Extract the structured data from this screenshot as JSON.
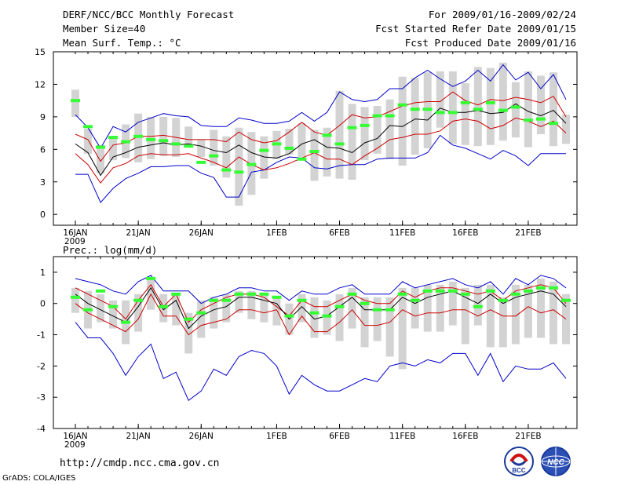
{
  "header": {
    "title": "DERF/NCC/BCC Monthly Forecast",
    "member_size": "Member Size=40",
    "variable1": "Mean Surf. Temp.: °C",
    "forecast_period": "For 2009/01/16-2009/02/24",
    "started_date": "Fcst Started Refer Date 2009/01/15",
    "produced_date": "Fcst Produced Date 2009/01/16"
  },
  "footer": {
    "url": "http://cmdp.ncc.cma.gov.cn",
    "grads": "GrADS: COLA/IGES",
    "logo1_text": "BCC",
    "logo2_text": "NCC"
  },
  "colors": {
    "box": "#d3d3d3",
    "mean": "#000000",
    "spread": "#cc0000",
    "envelope": "#0000cc",
    "obs": "#33ff33"
  },
  "chart_data": [
    {
      "type": "line",
      "title": "Mean Surf. Temp.: °C",
      "xlabel": "",
      "ylabel": "",
      "ylim": [
        -1,
        15
      ],
      "yticks": [
        0,
        3,
        6,
        9,
        12,
        15
      ],
      "xticks": [
        {
          "day": 0,
          "label": "16JAN",
          "sub": "2009"
        },
        {
          "day": 5,
          "label": "21JAN",
          "sub": ""
        },
        {
          "day": 10,
          "label": "26JAN",
          "sub": ""
        },
        {
          "day": 16,
          "label": "1FEB",
          "sub": ""
        },
        {
          "day": 21,
          "label": "6FEB",
          "sub": ""
        },
        {
          "day": 26,
          "label": "11FEB",
          "sub": ""
        },
        {
          "day": 31,
          "label": "16FEB",
          "sub": ""
        },
        {
          "day": 36,
          "label": "21FEB",
          "sub": ""
        }
      ],
      "days": [
        0,
        1,
        2,
        3,
        4,
        5,
        6,
        7,
        8,
        9,
        10,
        11,
        12,
        13,
        14,
        15,
        16,
        17,
        18,
        19,
        20,
        21,
        22,
        23,
        24,
        25,
        26,
        27,
        28,
        29,
        30,
        31,
        32,
        33,
        34,
        35,
        36,
        37,
        38,
        39
      ],
      "series": [
        {
          "name": "max",
          "values": [
            9.2,
            8.0,
            6.1,
            8.1,
            7.6,
            8.5,
            8.9,
            9.3,
            9.1,
            9.0,
            8.2,
            8.1,
            8.1,
            8.9,
            8.7,
            8.4,
            8.4,
            8.6,
            9.4,
            8.6,
            9.4,
            11.3,
            10.6,
            10.4,
            10.6,
            11.6,
            11.6,
            12.6,
            13.3,
            12.5,
            11.8,
            12.3,
            13.3,
            12.3,
            13.8,
            12.4,
            13.1,
            11.6,
            12.9,
            10.6
          ]
        },
        {
          "name": "upper_spread",
          "values": [
            7.4,
            6.9,
            4.9,
            6.4,
            6.6,
            7.2,
            7.2,
            7.3,
            7.1,
            6.9,
            6.9,
            6.9,
            6.7,
            7.6,
            6.9,
            6.6,
            6.8,
            7.6,
            8.5,
            7.6,
            7.3,
            8.2,
            9.2,
            8.9,
            9.0,
            9.5,
            10.0,
            10.3,
            10.4,
            10.4,
            11.3,
            10.5,
            10.1,
            10.6,
            10.5,
            10.8,
            10.6,
            10.3,
            10.9,
            9.0
          ]
        },
        {
          "name": "mean",
          "values": [
            6.5,
            5.7,
            3.6,
            5.3,
            5.7,
            6.2,
            6.4,
            6.6,
            6.4,
            6.5,
            6.3,
            5.9,
            5.7,
            6.4,
            5.7,
            5.3,
            5.2,
            5.6,
            6.5,
            6.9,
            6.2,
            6.1,
            5.7,
            6.6,
            7.0,
            8.2,
            8.1,
            8.8,
            8.7,
            9.8,
            9.4,
            9.4,
            9.6,
            9.3,
            9.4,
            10.2,
            9.5,
            9.1,
            9.6,
            8.4
          ]
        },
        {
          "name": "lower_spread",
          "values": [
            5.6,
            4.6,
            2.9,
            4.3,
            4.7,
            5.4,
            5.6,
            5.5,
            5.5,
            5.6,
            5.2,
            4.8,
            4.3,
            5.3,
            4.6,
            4.1,
            4.3,
            4.7,
            5.2,
            5.7,
            5.1,
            5.1,
            4.6,
            5.4,
            6.1,
            6.9,
            7.1,
            7.4,
            7.4,
            7.7,
            8.6,
            8.8,
            8.6,
            7.9,
            8.2,
            8.9,
            8.6,
            8.1,
            8.6,
            7.5
          ]
        },
        {
          "name": "min",
          "values": [
            3.7,
            3.7,
            1.1,
            2.4,
            3.3,
            3.8,
            4.4,
            4.4,
            4.5,
            4.5,
            3.8,
            3.4,
            1.6,
            1.6,
            3.9,
            4.1,
            4.8,
            5.3,
            5.2,
            4.3,
            4.2,
            4.5,
            4.6,
            4.6,
            5.1,
            5.2,
            5.2,
            5.2,
            5.7,
            7.3,
            6.4,
            6.1,
            5.6,
            5.1,
            5.9,
            5.4,
            4.5,
            5.6,
            5.6,
            5.6
          ]
        },
        {
          "name": "box_top",
          "values": [
            11.5,
            7.9,
            6.4,
            7.2,
            8.3,
            9.3,
            9.0,
            9.0,
            8.9,
            8.1,
            6.9,
            7.8,
            7.2,
            8.0,
            7.6,
            7.2,
            7.7,
            7.9,
            8.4,
            7.8,
            8.0,
            11.4,
            10.2,
            9.9,
            10.0,
            10.6,
            12.7,
            12.6,
            13.1,
            13.2,
            13.2,
            12.1,
            13.6,
            13.5,
            14.0,
            12.2,
            13.2,
            12.8,
            13.1,
            9.2
          ]
        },
        {
          "name": "box_bottom",
          "values": [
            9.0,
            5.6,
            3.8,
            5.0,
            5.2,
            4.8,
            5.1,
            5.4,
            5.3,
            6.2,
            5.3,
            4.5,
            3.4,
            0.8,
            1.8,
            3.3,
            5.1,
            5.5,
            5.3,
            3.1,
            3.5,
            3.3,
            3.2,
            5.0,
            5.6,
            5.1,
            4.5,
            5.5,
            6.1,
            8.0,
            6.5,
            6.4,
            6.3,
            6.4,
            6.8,
            7.1,
            6.2,
            7.4,
            6.3,
            6.5
          ]
        },
        {
          "name": "observed",
          "values": [
            10.5,
            8.1,
            6.2,
            7.1,
            6.7,
            7.2,
            6.9,
            6.8,
            6.5,
            6.3,
            4.8,
            5.4,
            4.1,
            3.9,
            4.6,
            5.9,
            6.5,
            6.1,
            5.1,
            5.8,
            7.3,
            6.5,
            8.0,
            8.2,
            9.1,
            9.1,
            10.1,
            9.7,
            9.7,
            9.4,
            9.4,
            10.3,
            9.7,
            10.3,
            9.6,
            9.9,
            8.7,
            8.8,
            8.4,
            null
          ]
        }
      ]
    },
    {
      "type": "line",
      "title": "Prec.: log(mm/d)",
      "xlabel": "",
      "ylabel": "",
      "ylim": [
        -4,
        1.5
      ],
      "yticks": [
        -4,
        -3,
        -2,
        -1,
        0,
        1
      ],
      "xticks": [
        {
          "day": 0,
          "label": "16JAN",
          "sub": "2009"
        },
        {
          "day": 5,
          "label": "21JAN",
          "sub": ""
        },
        {
          "day": 10,
          "label": "26JAN",
          "sub": ""
        },
        {
          "day": 16,
          "label": "1FEB",
          "sub": ""
        },
        {
          "day": 21,
          "label": "6FEB",
          "sub": ""
        },
        {
          "day": 26,
          "label": "11FEB",
          "sub": ""
        },
        {
          "day": 31,
          "label": "16FEB",
          "sub": ""
        },
        {
          "day": 36,
          "label": "21FEB",
          "sub": ""
        }
      ],
      "days": [
        0,
        1,
        2,
        3,
        4,
        5,
        6,
        7,
        8,
        9,
        10,
        11,
        12,
        13,
        14,
        15,
        16,
        17,
        18,
        19,
        20,
        21,
        22,
        23,
        24,
        25,
        26,
        27,
        28,
        29,
        30,
        31,
        32,
        33,
        34,
        35,
        36,
        37,
        38,
        39
      ],
      "series": [
        {
          "name": "max",
          "values": [
            0.8,
            0.7,
            0.6,
            0.4,
            0.3,
            0.7,
            0.9,
            0.4,
            0.4,
            0.4,
            0.0,
            0.2,
            0.3,
            0.5,
            0.5,
            0.4,
            0.4,
            0.1,
            0.4,
            0.3,
            0.3,
            0.5,
            0.6,
            0.3,
            0.3,
            0.3,
            0.7,
            0.5,
            0.6,
            0.7,
            0.8,
            0.6,
            0.5,
            0.7,
            0.3,
            0.8,
            0.6,
            0.9,
            0.8,
            0.5
          ]
        },
        {
          "name": "upper_spread",
          "values": [
            0.5,
            0.3,
            0.1,
            -0.1,
            -0.5,
            0.1,
            0.6,
            -0.1,
            0.3,
            -0.6,
            -0.2,
            0.0,
            0.2,
            0.3,
            0.3,
            0.2,
            -0.1,
            -0.4,
            0.1,
            -0.1,
            -0.1,
            0.1,
            0.3,
            0.1,
            0.0,
            0.0,
            0.4,
            0.2,
            0.4,
            0.5,
            0.5,
            0.4,
            0.3,
            0.4,
            0.1,
            0.4,
            0.5,
            0.6,
            0.5,
            0.0
          ]
        },
        {
          "name": "mean",
          "values": [
            0.3,
            0.0,
            -0.2,
            -0.4,
            -0.6,
            -0.1,
            0.5,
            -0.2,
            0.1,
            -0.8,
            -0.4,
            -0.2,
            -0.1,
            0.2,
            0.2,
            0.1,
            0.0,
            -0.5,
            -0.1,
            -0.5,
            -0.4,
            -0.1,
            0.2,
            -0.2,
            -0.2,
            -0.2,
            0.2,
            0.0,
            0.2,
            0.3,
            0.4,
            0.2,
            0.0,
            0.3,
            0.0,
            0.2,
            0.3,
            0.4,
            0.3,
            -0.1
          ]
        },
        {
          "name": "lower_spread",
          "values": [
            0.0,
            -0.3,
            -0.5,
            -0.7,
            -0.9,
            -0.5,
            0.3,
            -0.4,
            -0.4,
            -1.0,
            -0.7,
            -0.6,
            -0.5,
            -0.2,
            -0.2,
            -0.3,
            -0.2,
            -1.0,
            -0.4,
            -0.9,
            -0.9,
            -0.6,
            -0.2,
            -0.7,
            -0.7,
            -0.6,
            -0.2,
            -0.4,
            -0.3,
            -0.3,
            -0.2,
            -0.2,
            -0.4,
            -0.2,
            -0.4,
            -0.4,
            -0.1,
            -0.3,
            -0.2,
            -0.5
          ]
        },
        {
          "name": "min",
          "values": [
            -0.6,
            -1.1,
            -1.1,
            -1.6,
            -2.3,
            -1.7,
            -1.3,
            -2.4,
            -2.2,
            -3.1,
            -2.8,
            -2.1,
            -2.3,
            -1.7,
            -1.5,
            -1.6,
            -2.0,
            -2.9,
            -2.3,
            -2.6,
            -2.8,
            -2.8,
            -2.6,
            -2.4,
            -2.5,
            -2.0,
            -1.9,
            -2.0,
            -1.8,
            -1.9,
            -1.6,
            -1.6,
            -2.3,
            -1.6,
            -2.5,
            -2.0,
            -2.1,
            -2.1,
            -1.9,
            -2.4
          ]
        },
        {
          "name": "box_top",
          "values": [
            0.5,
            0.4,
            0.3,
            0.1,
            0.1,
            0.3,
            0.8,
            0.3,
            0.3,
            -0.3,
            0.1,
            0.2,
            0.3,
            0.4,
            0.4,
            0.3,
            0.2,
            0.0,
            0.3,
            0.2,
            0.1,
            0.3,
            0.5,
            0.2,
            0.2,
            0.2,
            0.5,
            0.5,
            0.6,
            0.6,
            0.7,
            0.5,
            0.6,
            0.6,
            0.2,
            0.6,
            0.6,
            0.8,
            0.7,
            0.3
          ]
        },
        {
          "name": "box_bottom",
          "values": [
            -0.3,
            -0.8,
            -0.6,
            -0.8,
            -1.3,
            -0.9,
            -0.2,
            -0.6,
            -0.7,
            -1.6,
            -1.1,
            -0.8,
            -0.6,
            -0.3,
            -0.5,
            -0.6,
            -0.7,
            -1.0,
            -0.6,
            -1.1,
            -1.0,
            -1.2,
            -0.8,
            -1.4,
            -1.2,
            -1.7,
            -2.1,
            -0.8,
            -0.9,
            -0.9,
            -0.7,
            -1.3,
            -0.7,
            -1.4,
            -1.4,
            -1.3,
            -1.1,
            -1.1,
            -1.3,
            -1.3
          ]
        },
        {
          "name": "observed",
          "values": [
            0.2,
            -0.2,
            0.4,
            -0.1,
            -0.6,
            0.1,
            0.8,
            -0.1,
            0.3,
            -0.5,
            -0.3,
            0.1,
            0.1,
            0.3,
            0.3,
            0.3,
            0.2,
            -0.4,
            0.1,
            -0.3,
            -0.4,
            -0.1,
            0.3,
            0.0,
            -0.2,
            -0.2,
            0.3,
            0.1,
            0.4,
            0.4,
            0.4,
            0.3,
            -0.1,
            0.4,
            0.1,
            0.3,
            0.4,
            0.5,
            0.5,
            0.1
          ]
        }
      ]
    }
  ]
}
